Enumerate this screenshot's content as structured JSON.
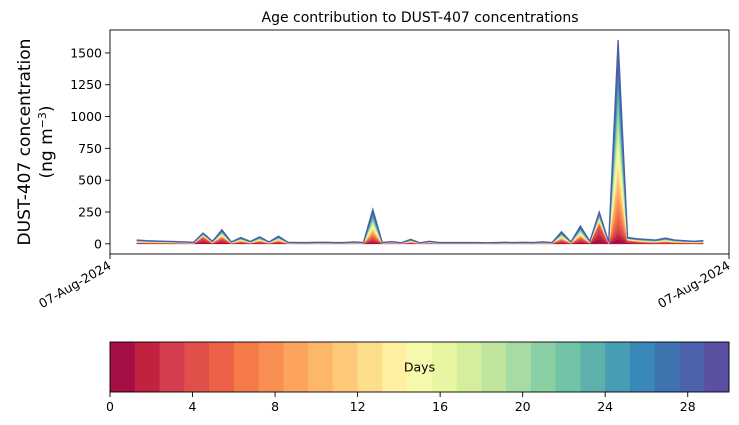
{
  "chart_data": {
    "type": "area",
    "title": "Age contribution to DUST-407 concentrations",
    "ylabel_line1": "DUST-407 concentration",
    "ylabel_line2": "(ng m",
    "ylabel_sup": "−3",
    "ylabel_close": ")",
    "ylim": [
      -80,
      1680
    ],
    "yticks": [
      0,
      250,
      500,
      750,
      1000,
      1250,
      1500
    ],
    "ytick_labels": [
      "0",
      "250",
      "500",
      "750",
      "1000",
      "1250",
      "1500"
    ],
    "xtick_labels": [
      "07-Aug-2024",
      "07-Aug-2024"
    ],
    "grid": false,
    "stack_order": "age bands 0–30 days stacked; younger ages at bottom",
    "samples": 61,
    "x_index": [
      0,
      1,
      2,
      3,
      4,
      5,
      6,
      7,
      8,
      9,
      10,
      11,
      12,
      13,
      14,
      15,
      16,
      17,
      18,
      19,
      20,
      21,
      22,
      23,
      24,
      25,
      26,
      27,
      28,
      29,
      30,
      31,
      32,
      33,
      34,
      35,
      36,
      37,
      38,
      39,
      40,
      41,
      42,
      43,
      44,
      45,
      46,
      47,
      48,
      49,
      50,
      51,
      52,
      53,
      54,
      55,
      56,
      57,
      58,
      59,
      60
    ],
    "total_values": [
      30,
      25,
      22,
      20,
      18,
      15,
      12,
      85,
      20,
      110,
      15,
      50,
      18,
      55,
      15,
      60,
      12,
      10,
      10,
      12,
      12,
      10,
      10,
      15,
      10,
      270,
      10,
      18,
      8,
      35,
      8,
      20,
      10,
      10,
      10,
      10,
      10,
      8,
      10,
      12,
      10,
      12,
      10,
      15,
      10,
      95,
      15,
      140,
      20,
      250,
      15,
      1600,
      50,
      40,
      35,
      30,
      45,
      30,
      25,
      20,
      25
    ],
    "young_fraction": [
      0.3,
      0.3,
      0.3,
      0.3,
      0.3,
      0.3,
      0.3,
      0.6,
      0.3,
      0.4,
      0.3,
      0.3,
      0.3,
      0.3,
      0.3,
      0.3,
      0.3,
      0.3,
      0.3,
      0.3,
      0.3,
      0.3,
      0.3,
      0.3,
      0.3,
      0.2,
      0.3,
      0.3,
      0.3,
      0.3,
      0.3,
      0.3,
      0.3,
      0.3,
      0.3,
      0.3,
      0.3,
      0.3,
      0.3,
      0.3,
      0.3,
      0.3,
      0.3,
      0.3,
      0.3,
      0.3,
      0.3,
      0.3,
      0.3,
      0.6,
      0.3,
      0.1,
      0.5,
      0.4,
      0.3,
      0.3,
      0.3,
      0.3,
      0.3,
      0.3,
      0.3
    ],
    "colorbar": {
      "label": "Days",
      "min": 0,
      "max": 30,
      "ticks": [
        0,
        4,
        8,
        12,
        16,
        20,
        24,
        28
      ],
      "tick_labels": [
        "0",
        "4",
        "8",
        "12",
        "16",
        "20",
        "24",
        "28"
      ],
      "colors": [
        "#a50f45",
        "#c0223f",
        "#d53e4f",
        "#e04f4a",
        "#ec6146",
        "#f47a4a",
        "#f98e52",
        "#fca35d",
        "#fdb768",
        "#fec979",
        "#fede8b",
        "#fff0a2",
        "#f6faad",
        "#e8f6a1",
        "#d5ee9b",
        "#bfe59f",
        "#a6dba4",
        "#8bd0a4",
        "#72c4a6",
        "#5cb2ab",
        "#479eb3",
        "#3a88b9",
        "#3f73b0",
        "#4c62ad",
        "#5a50a2"
      ]
    }
  }
}
